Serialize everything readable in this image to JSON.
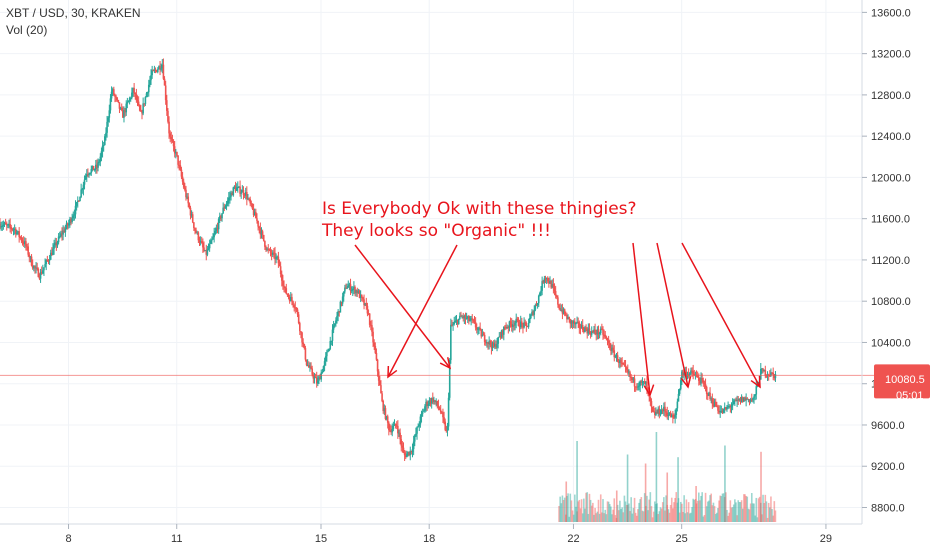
{
  "legend": {
    "symbol_line": "XBT / USD, 30, KRAKEN",
    "volume_line": "Vol (20)"
  },
  "current_price": {
    "value": 10080.5,
    "label": "10080.5",
    "countdown": "05:01"
  },
  "annotation": {
    "lines": [
      "Is Everybody Ok with these thingies?",
      "They looks so \"Organic\" !!!"
    ],
    "color": "#e8141c"
  },
  "colors": {
    "up": "#26a69a",
    "down": "#ef5350",
    "price_line": "#ef5350",
    "badge_bg": "#ef5350",
    "grid": "#f0f3f7"
  },
  "chart_data": {
    "type": "candlestick",
    "title": "XBT / USD, 30, KRAKEN",
    "indicator": "Vol (20)",
    "x_tick_labels": [
      "8",
      "11",
      "15",
      "18",
      "22",
      "25",
      "29"
    ],
    "x_tick_days": [
      8,
      11,
      15,
      18,
      22,
      25,
      29
    ],
    "xlim_days": [
      6.1,
      30.0
    ],
    "y_tick_labels": [
      "8800.0",
      "9200.0",
      "9600.0",
      "10000.0",
      "10400.0",
      "10800.0",
      "11200.0",
      "11600.0",
      "12000.0",
      "12400.0",
      "12800.0",
      "13200.0",
      "13600.0"
    ],
    "y_ticks": [
      8800,
      9200,
      9600,
      10000,
      10400,
      10800,
      11200,
      11600,
      12000,
      12400,
      12800,
      13200,
      13600
    ],
    "ylim": [
      8640,
      13720
    ],
    "grid": true,
    "price_path": [
      [
        6.1,
        11550
      ],
      [
        6.5,
        11500
      ],
      [
        6.8,
        11350
      ],
      [
        7.0,
        11150
      ],
      [
        7.2,
        11050
      ],
      [
        7.5,
        11250
      ],
      [
        7.8,
        11450
      ],
      [
        8.0,
        11550
      ],
      [
        8.2,
        11700
      ],
      [
        8.5,
        12050
      ],
      [
        8.8,
        12100
      ],
      [
        9.0,
        12350
      ],
      [
        9.2,
        12850
      ],
      [
        9.5,
        12600
      ],
      [
        9.8,
        12850
      ],
      [
        10.0,
        12600
      ],
      [
        10.3,
        13000
      ],
      [
        10.6,
        13100
      ],
      [
        10.8,
        12400
      ],
      [
        11.0,
        12200
      ],
      [
        11.2,
        11900
      ],
      [
        11.5,
        11500
      ],
      [
        11.8,
        11250
      ],
      [
        12.0,
        11400
      ],
      [
        12.3,
        11700
      ],
      [
        12.6,
        11900
      ],
      [
        12.9,
        11850
      ],
      [
        13.2,
        11600
      ],
      [
        13.5,
        11300
      ],
      [
        13.8,
        11200
      ],
      [
        14.0,
        10900
      ],
      [
        14.3,
        10750
      ],
      [
        14.6,
        10200
      ],
      [
        14.9,
        10000
      ],
      [
        15.1,
        10200
      ],
      [
        15.4,
        10600
      ],
      [
        15.7,
        10950
      ],
      [
        16.0,
        10900
      ],
      [
        16.3,
        10700
      ],
      [
        16.5,
        10300
      ],
      [
        16.7,
        9800
      ],
      [
        16.9,
        9550
      ],
      [
        17.1,
        9600
      ],
      [
        17.3,
        9300
      ],
      [
        17.5,
        9350
      ],
      [
        17.7,
        9600
      ],
      [
        17.9,
        9800
      ],
      [
        18.1,
        9850
      ],
      [
        18.3,
        9750
      ],
      [
        18.5,
        9500
      ],
      [
        18.6,
        10550
      ],
      [
        18.9,
        10650
      ],
      [
        19.2,
        10600
      ],
      [
        19.5,
        10450
      ],
      [
        19.8,
        10350
      ],
      [
        20.1,
        10550
      ],
      [
        20.4,
        10600
      ],
      [
        20.7,
        10550
      ],
      [
        21.0,
        10800
      ],
      [
        21.2,
        11050
      ],
      [
        21.4,
        10950
      ],
      [
        21.6,
        10750
      ],
      [
        21.9,
        10600
      ],
      [
        22.2,
        10550
      ],
      [
        22.5,
        10500
      ],
      [
        22.8,
        10500
      ],
      [
        23.1,
        10300
      ],
      [
        23.4,
        10150
      ],
      [
        23.7,
        10000
      ],
      [
        24.0,
        10000
      ],
      [
        24.2,
        9700
      ],
      [
        24.5,
        9750
      ],
      [
        24.8,
        9650
      ],
      [
        25.0,
        10100
      ],
      [
        25.3,
        10100
      ],
      [
        25.6,
        10000
      ],
      [
        25.8,
        9850
      ],
      [
        26.1,
        9720
      ],
      [
        26.4,
        9800
      ],
      [
        26.7,
        9850
      ],
      [
        27.0,
        9850
      ],
      [
        27.2,
        10120
      ],
      [
        27.5,
        10090
      ],
      [
        27.6,
        10080
      ]
    ],
    "volume_spikes_days": [
      21.8,
      22.1,
      23.2,
      23.5,
      24.0,
      24.3,
      24.6,
      24.9,
      25.4,
      26.2,
      27.2
    ],
    "volume_spikes_rel": [
      0.45,
      0.9,
      0.35,
      0.75,
      0.65,
      1.0,
      0.55,
      0.72,
      0.4,
      0.85,
      0.78
    ]
  }
}
